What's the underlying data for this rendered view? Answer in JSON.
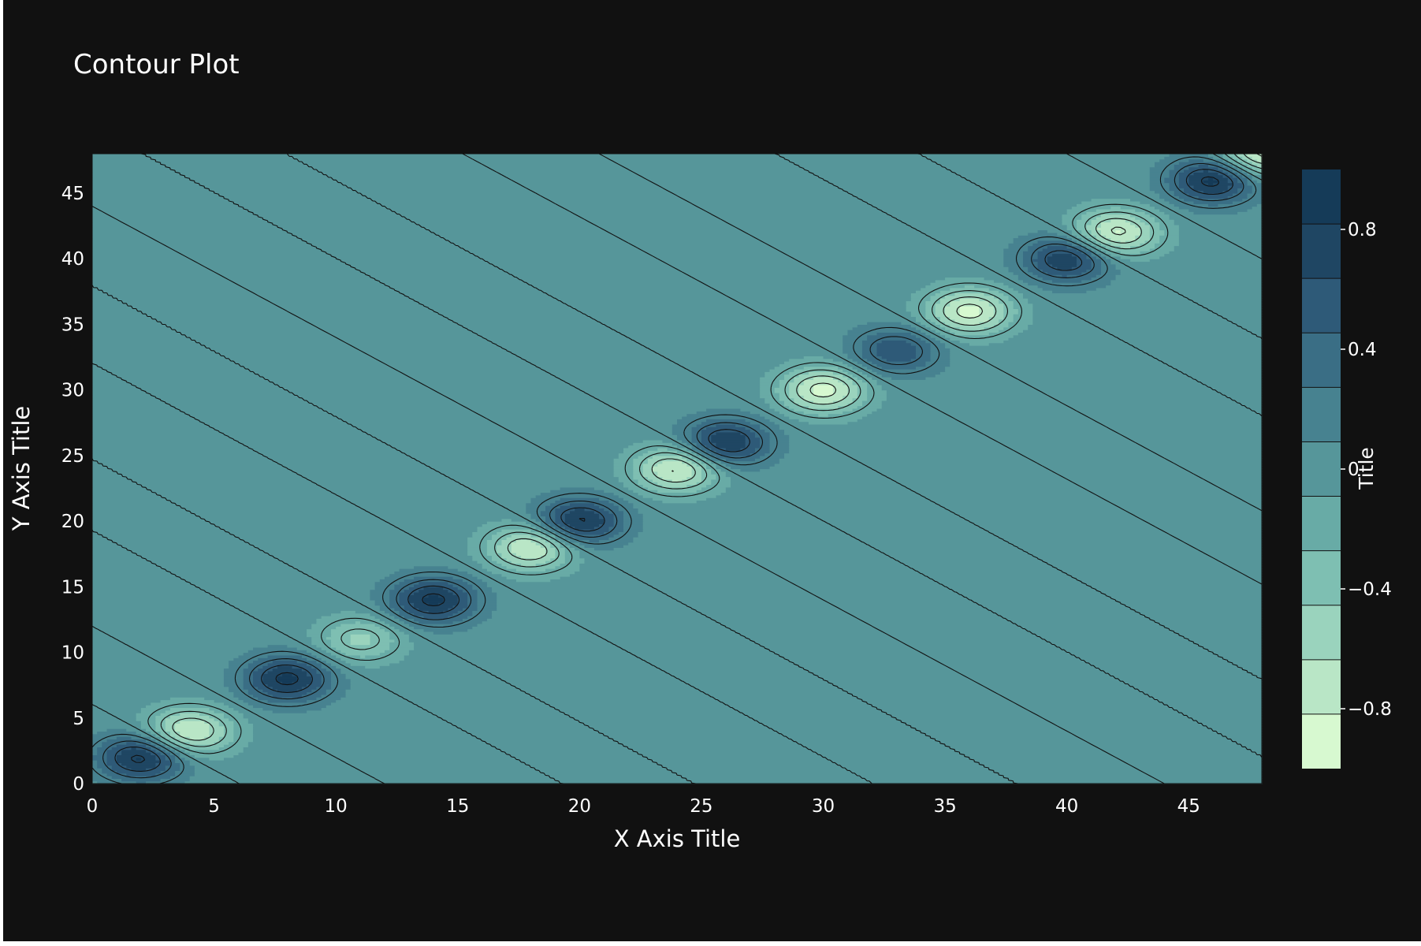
{
  "chart_data": {
    "type": "contour",
    "title": "Contour Plot",
    "xlabel": "X Axis Title",
    "ylabel": "Y Axis Title",
    "colorbar_title": "Title",
    "xlim": [
      0,
      48
    ],
    "ylim": [
      0,
      48
    ],
    "zlim": [
      -1,
      1
    ],
    "contour_step": 0.2,
    "x_ticks": [
      0,
      5,
      10,
      15,
      20,
      25,
      30,
      35,
      40,
      45
    ],
    "y_ticks": [
      0,
      5,
      10,
      15,
      20,
      25,
      30,
      35,
      40,
      45
    ],
    "colorbar_ticks": [
      {
        "value": 0.8,
        "label": "0.8"
      },
      {
        "value": 0.4,
        "label": "0.4"
      },
      {
        "value": 0,
        "label": "0"
      },
      {
        "value": -0.4,
        "label": "−0.4"
      },
      {
        "value": -0.8,
        "label": "−0.8"
      }
    ],
    "colorscale": [
      "#d7f9d0",
      "#b9e6c6",
      "#9ad3bd",
      "#7ebfb2",
      "#68aba6",
      "#56969a",
      "#478290",
      "#3a6e85",
      "#2e5a78",
      "#1f4663",
      "#153b58"
    ],
    "features": [
      {
        "x": 2,
        "y": 2,
        "z": 0.88
      },
      {
        "x": 4,
        "y": 4,
        "z": -0.84
      },
      {
        "x": 8,
        "y": 8,
        "z": 0.86
      },
      {
        "x": 11,
        "y": 11,
        "z": -0.5
      },
      {
        "x": 14,
        "y": 14,
        "z": 0.86
      },
      {
        "x": 18,
        "y": 18,
        "z": -0.82
      },
      {
        "x": 20,
        "y": 20,
        "z": 0.86
      },
      {
        "x": 24,
        "y": 24,
        "z": -0.86
      },
      {
        "x": 26,
        "y": 26,
        "z": 0.84
      },
      {
        "x": 30,
        "y": 30,
        "z": -0.88
      },
      {
        "x": 33,
        "y": 33,
        "z": 0.6
      },
      {
        "x": 36,
        "y": 36,
        "z": -0.88
      },
      {
        "x": 40,
        "y": 40,
        "z": 0.8
      },
      {
        "x": 42,
        "y": 42,
        "z": -0.88
      },
      {
        "x": 46,
        "y": 46,
        "z": 0.9
      },
      {
        "x": 48,
        "y": 48,
        "z": -0.9
      }
    ],
    "colors": {
      "page_bg": "#111111",
      "plot_bg": "#4c9197",
      "text": "#ffffff",
      "contour_line": "#111111"
    }
  }
}
